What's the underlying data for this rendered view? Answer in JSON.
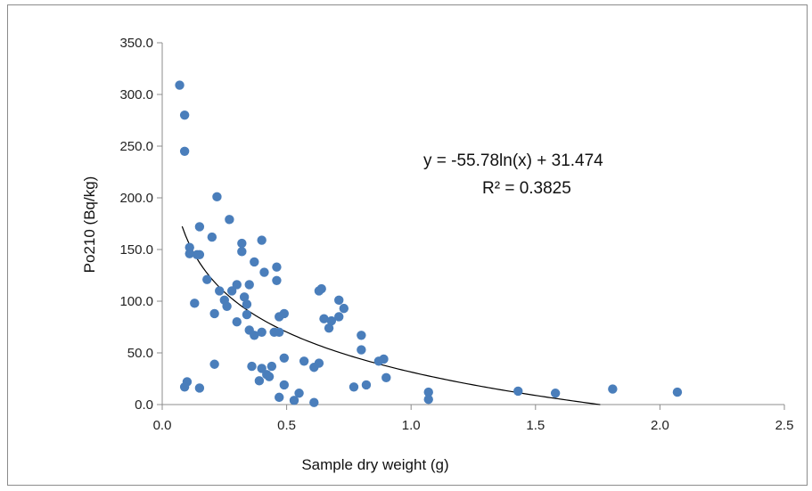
{
  "chart_data": {
    "type": "scatter",
    "xlabel": "Sample dry weight (g)",
    "ylabel": "Po210 (Bq/kg)",
    "xlim": [
      0,
      2.5
    ],
    "ylim": [
      0,
      350
    ],
    "x_ticks": [
      "0.0",
      "0.5",
      "1.0",
      "1.5",
      "2.0",
      "2.5"
    ],
    "y_ticks": [
      "0.0",
      "50.0",
      "100.0",
      "150.0",
      "200.0",
      "250.0",
      "300.0",
      "350.0"
    ],
    "grid": false,
    "legend": "none",
    "marker_color": "#4a7ebb",
    "trendline": {
      "type": "logarithmic",
      "equation": "y = -55.78ln(x) + 31.474",
      "r_squared": "R² = 0.3825",
      "a": -55.78,
      "b": 31.474,
      "x_range": [
        0.08,
        1.76
      ],
      "color": "#000000"
    },
    "points": [
      [
        0.07,
        309
      ],
      [
        0.09,
        280
      ],
      [
        0.09,
        245
      ],
      [
        0.22,
        201
      ],
      [
        0.27,
        179
      ],
      [
        0.15,
        172
      ],
      [
        0.2,
        162
      ],
      [
        0.4,
        159
      ],
      [
        0.32,
        156
      ],
      [
        0.11,
        152
      ],
      [
        0.41,
        128
      ],
      [
        0.11,
        146
      ],
      [
        0.14,
        145
      ],
      [
        0.15,
        145
      ],
      [
        0.32,
        148
      ],
      [
        0.37,
        138
      ],
      [
        0.46,
        133
      ],
      [
        0.18,
        121
      ],
      [
        0.46,
        120
      ],
      [
        0.3,
        116
      ],
      [
        0.35,
        116
      ],
      [
        0.23,
        110
      ],
      [
        0.28,
        110
      ],
      [
        0.33,
        104
      ],
      [
        0.25,
        101
      ],
      [
        0.13,
        98
      ],
      [
        0.26,
        95
      ],
      [
        0.34,
        97
      ],
      [
        0.21,
        88
      ],
      [
        0.34,
        87
      ],
      [
        0.47,
        85
      ],
      [
        0.49,
        88
      ],
      [
        0.63,
        110
      ],
      [
        0.64,
        112
      ],
      [
        0.71,
        101
      ],
      [
        0.73,
        93
      ],
      [
        0.65,
        83
      ],
      [
        0.68,
        81
      ],
      [
        0.71,
        85
      ],
      [
        0.67,
        74
      ],
      [
        0.3,
        80
      ],
      [
        0.35,
        72
      ],
      [
        0.4,
        70
      ],
      [
        0.37,
        67
      ],
      [
        0.47,
        70
      ],
      [
        0.45,
        70
      ],
      [
        0.8,
        67
      ],
      [
        0.8,
        53
      ],
      [
        0.49,
        45
      ],
      [
        0.57,
        42
      ],
      [
        0.63,
        40
      ],
      [
        0.87,
        42
      ],
      [
        0.89,
        44
      ],
      [
        0.21,
        39
      ],
      [
        0.36,
        37
      ],
      [
        0.4,
        35
      ],
      [
        0.44,
        37
      ],
      [
        0.61,
        36
      ],
      [
        0.42,
        29
      ],
      [
        0.43,
        27
      ],
      [
        0.39,
        23
      ],
      [
        0.49,
        19
      ],
      [
        0.9,
        26
      ],
      [
        0.77,
        17
      ],
      [
        0.82,
        19
      ],
      [
        0.1,
        22
      ],
      [
        0.09,
        17
      ],
      [
        0.15,
        16
      ],
      [
        0.55,
        11
      ],
      [
        0.47,
        7
      ],
      [
        0.53,
        4
      ],
      [
        0.61,
        2
      ],
      [
        1.07,
        12
      ],
      [
        1.07,
        5
      ],
      [
        1.43,
        13
      ],
      [
        1.58,
        11
      ],
      [
        1.81,
        15
      ],
      [
        2.07,
        12
      ]
    ]
  }
}
